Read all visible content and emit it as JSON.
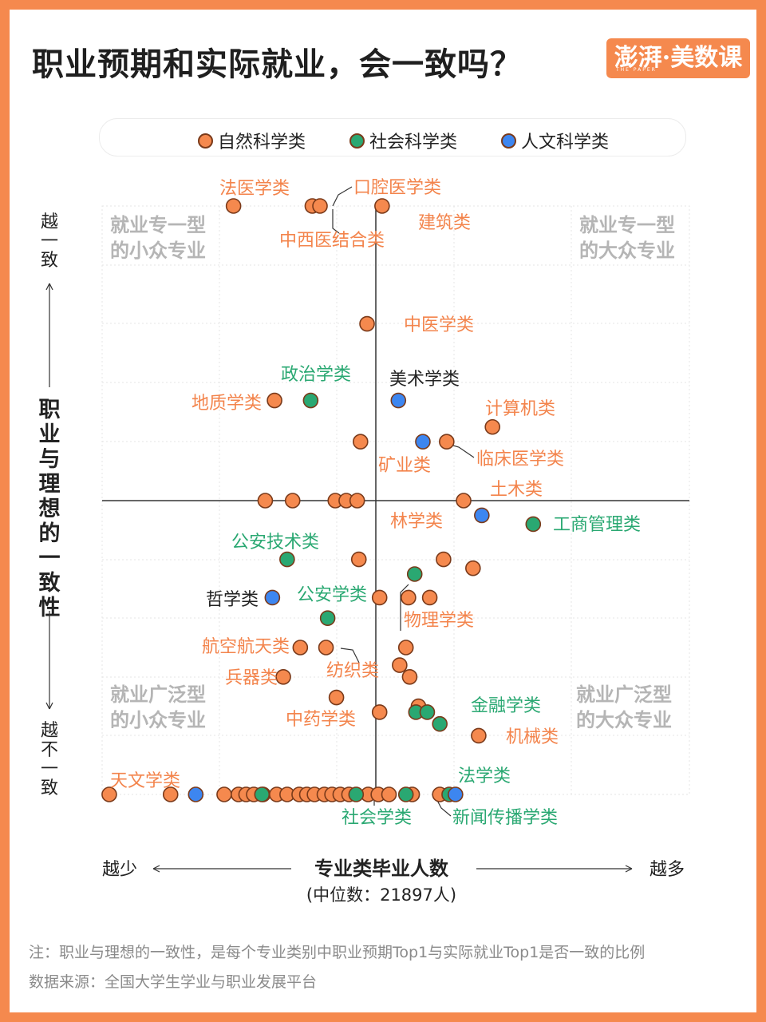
{
  "title": "职业预期和实际就业，会一致吗？",
  "logo": {
    "text": "澎湃·美数课",
    "sub": "THE PAPER"
  },
  "legend": [
    {
      "label": "自然科学类",
      "color": "#f5894e"
    },
    {
      "label": "社会科学类",
      "color": "#2aa872"
    },
    {
      "label": "人文科学类",
      "color": "#3d86f0"
    }
  ],
  "colors": {
    "natural": "#f5894e",
    "social": "#2aa872",
    "humanities": "#3d86f0",
    "stroke": "#7a3a1a",
    "natural_text": "#f3844c",
    "social_text": "#2aa872",
    "quadrant_text": "#b5b5b5"
  },
  "quadrant_labels": {
    "top_left": [
      "就业专一型",
      "的小众专业"
    ],
    "top_right": [
      "就业专一型",
      "的大众专业"
    ],
    "bottom_left": [
      "就业广泛型",
      "的小众专业"
    ],
    "bottom_right": [
      "就业广泛型",
      "的大众专业"
    ]
  },
  "y_axis": {
    "top": "越一致",
    "bottom": "越不一致",
    "label": "职业与理想的一致性"
  },
  "x_axis": {
    "left": "越少",
    "right": "越多",
    "label": "专业类毕业人数",
    "sublabel": "(中位数：21897人)"
  },
  "notes": [
    "注：职业与理想的一致性，是每个专业类别中职业预期Top1与实际就业Top1是否一致的比例",
    "数据来源：全国大学生学业与职业发展平台"
  ],
  "chart_data": {
    "type": "scatter",
    "x_median": 21897,
    "x_note": "x = rank/position relative to median on a 0-100 scale (50 = median)",
    "series": [
      {
        "name": "自然科学类",
        "color": "#f5894e",
        "points": [
          {
            "x": 24.0,
            "y": 100
          },
          {
            "x": 38.4,
            "y": 100
          },
          {
            "x": 39.8,
            "y": 100
          },
          {
            "x": 51.0,
            "y": 100
          },
          {
            "x": 48.4,
            "y": 60
          },
          {
            "x": 31.5,
            "y": 34
          },
          {
            "x": 68.6,
            "y": 25
          },
          {
            "x": 47.2,
            "y": 20
          },
          {
            "x": 61.3,
            "y": 20
          },
          {
            "x": 29.8,
            "y": 0
          },
          {
            "x": 34.8,
            "y": 0
          },
          {
            "x": 42.6,
            "y": 0
          },
          {
            "x": 44.6,
            "y": 0
          },
          {
            "x": 46.6,
            "y": 0
          },
          {
            "x": 64.0,
            "y": 0
          },
          {
            "x": 46.9,
            "y": -20
          },
          {
            "x": 60.8,
            "y": -20
          },
          {
            "x": 65.5,
            "y": -23
          },
          {
            "x": 50.6,
            "y": -33
          },
          {
            "x": 55.2,
            "y": -33
          },
          {
            "x": 58.6,
            "y": -33
          },
          {
            "x": 36.2,
            "y": -50
          },
          {
            "x": 40.9,
            "y": -50
          },
          {
            "x": 54.8,
            "y": -50
          },
          {
            "x": 53.8,
            "y": -56
          },
          {
            "x": 55.4,
            "y": -60
          },
          {
            "x": 33.1,
            "y": -60
          },
          {
            "x": 42.8,
            "y": -67
          },
          {
            "x": 56.8,
            "y": -70
          },
          {
            "x": 50.6,
            "y": -72
          },
          {
            "x": 66.4,
            "y": -80
          },
          {
            "x": 1.3,
            "y": -100
          },
          {
            "x": 12.5,
            "y": -100
          },
          {
            "x": 22.3,
            "y": -100
          },
          {
            "x": 24.9,
            "y": -100
          },
          {
            "x": 26.3,
            "y": -100
          },
          {
            "x": 27.7,
            "y": -100
          },
          {
            "x": 29.4,
            "y": -100
          },
          {
            "x": 31.9,
            "y": -100
          },
          {
            "x": 33.8,
            "y": -100
          },
          {
            "x": 36.0,
            "y": -100
          },
          {
            "x": 37.4,
            "y": -100
          },
          {
            "x": 38.8,
            "y": -100
          },
          {
            "x": 40.6,
            "y": -100
          },
          {
            "x": 42.0,
            "y": -100
          },
          {
            "x": 43.5,
            "y": -100
          },
          {
            "x": 45.1,
            "y": -100
          },
          {
            "x": 48.6,
            "y": -100
          },
          {
            "x": 50.4,
            "y": -100
          },
          {
            "x": 52.1,
            "y": -100
          },
          {
            "x": 55.8,
            "y": -100
          },
          {
            "x": 60.2,
            "y": -100
          }
        ]
      },
      {
        "name": "社会科学类",
        "color": "#2aa872",
        "points": [
          {
            "x": 38.1,
            "y": 34
          },
          {
            "x": 75.1,
            "y": -8
          },
          {
            "x": 33.8,
            "y": -20
          },
          {
            "x": 56.2,
            "y": -25
          },
          {
            "x": 41.2,
            "y": -40
          },
          {
            "x": 56.4,
            "y": -72
          },
          {
            "x": 58.2,
            "y": -72
          },
          {
            "x": 60.2,
            "y": -76
          },
          {
            "x": 29.2,
            "y": -100
          },
          {
            "x": 46.4,
            "y": -100
          },
          {
            "x": 54.8,
            "y": -100
          },
          {
            "x": 61.7,
            "y": -100
          }
        ]
      },
      {
        "name": "人文科学类",
        "color": "#3d86f0",
        "points": [
          {
            "x": 53.6,
            "y": 34
          },
          {
            "x": 57.5,
            "y": 20
          },
          {
            "x": 66.9,
            "y": -5
          },
          {
            "x": 31.1,
            "y": -33
          },
          {
            "x": 17.1,
            "y": -100
          },
          {
            "x": 62.7,
            "y": -100
          }
        ]
      }
    ],
    "labels": [
      {
        "text": "法医学类",
        "cat": "natural"
      },
      {
        "text": "口腔医学类",
        "cat": "natural"
      },
      {
        "text": "建筑类",
        "cat": "natural"
      },
      {
        "text": "中西医结合类",
        "cat": "natural"
      },
      {
        "text": "中医学类",
        "cat": "natural"
      },
      {
        "text": "政治学类",
        "cat": "social"
      },
      {
        "text": "美术学类",
        "cat": "humanities"
      },
      {
        "text": "地质学类",
        "cat": "natural"
      },
      {
        "text": "计算机类",
        "cat": "natural"
      },
      {
        "text": "矿业类",
        "cat": "natural"
      },
      {
        "text": "临床医学类",
        "cat": "natural"
      },
      {
        "text": "土木类",
        "cat": "natural"
      },
      {
        "text": "林学类",
        "cat": "natural"
      },
      {
        "text": "工商管理类",
        "cat": "social"
      },
      {
        "text": "公安技术类",
        "cat": "social"
      },
      {
        "text": "哲学类",
        "cat": "humanities"
      },
      {
        "text": "公安学类",
        "cat": "social"
      },
      {
        "text": "物理学类",
        "cat": "natural"
      },
      {
        "text": "航空航天类",
        "cat": "natural"
      },
      {
        "text": "纺织类",
        "cat": "natural"
      },
      {
        "text": "兵器类",
        "cat": "natural"
      },
      {
        "text": "金融学类",
        "cat": "social"
      },
      {
        "text": "中药学类",
        "cat": "natural"
      },
      {
        "text": "机械类",
        "cat": "natural"
      },
      {
        "text": "天文学类",
        "cat": "natural"
      },
      {
        "text": "法学类",
        "cat": "social"
      },
      {
        "text": "社会学类",
        "cat": "social"
      },
      {
        "text": "新闻传播学类",
        "cat": "social"
      }
    ],
    "xlim": [
      0,
      100
    ],
    "ylim": [
      -100,
      100
    ],
    "grid": true,
    "legend_position": "top"
  }
}
